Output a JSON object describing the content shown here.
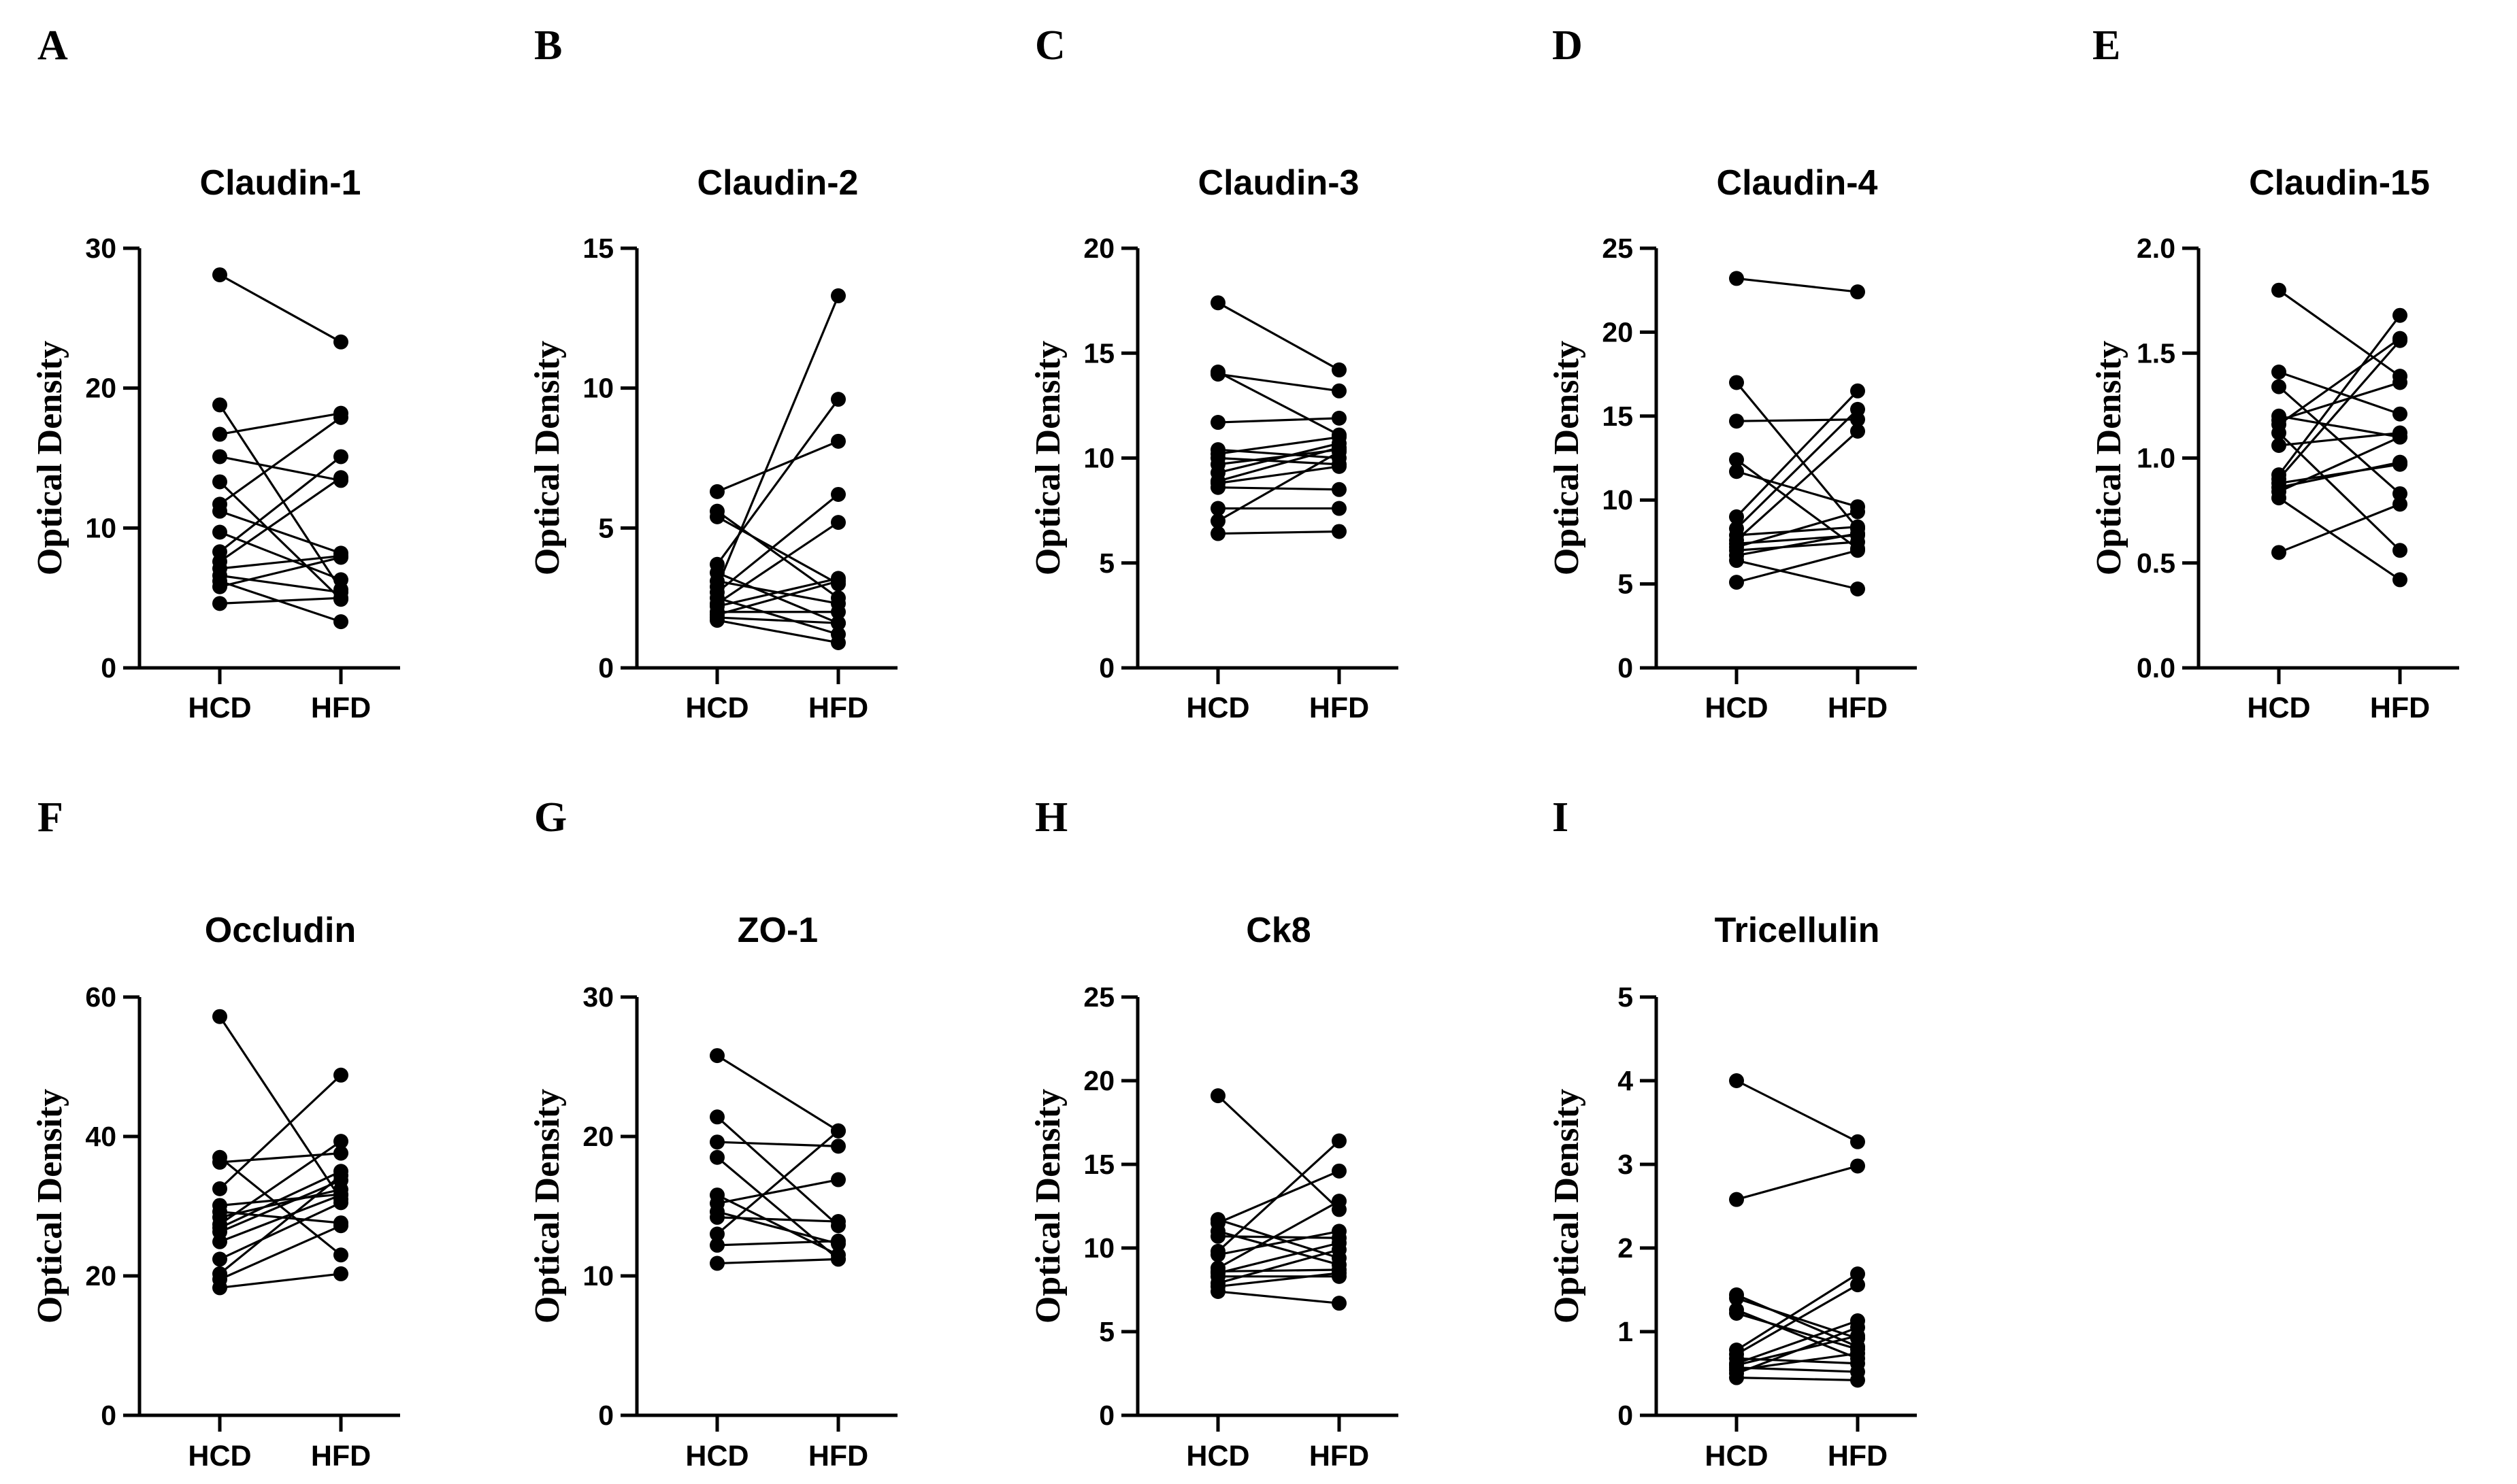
{
  "figure": {
    "background": "#ffffff",
    "ink": "#000000"
  },
  "chart_data": [
    {
      "type": "line",
      "letter": "A",
      "title": "Claudin-1",
      "ylabel": "Optical Density",
      "categories": [
        "HCD",
        "HFD"
      ],
      "ylim": [
        0,
        30
      ],
      "yticks": [
        "0",
        "10",
        "20",
        "30"
      ],
      "pairs": [
        [
          28.1,
          23.3
        ],
        [
          18.8,
          5.6
        ],
        [
          16.7,
          18.2
        ],
        [
          15.1,
          13.4
        ],
        [
          13.3,
          4.9
        ],
        [
          11.7,
          17.9
        ],
        [
          11.2,
          8.2
        ],
        [
          9.7,
          6.3
        ],
        [
          8.3,
          15.1
        ],
        [
          7.6,
          13.6
        ],
        [
          7.1,
          8.0
        ],
        [
          6.6,
          5.4
        ],
        [
          6.2,
          3.3
        ],
        [
          5.8,
          7.9
        ],
        [
          4.6,
          5.0
        ]
      ]
    },
    {
      "type": "line",
      "letter": "B",
      "title": "Claudin-2",
      "ylabel": "Optical Density",
      "categories": [
        "HCD",
        "HFD"
      ],
      "ylim": [
        0,
        15
      ],
      "yticks": [
        "0",
        "5",
        "10",
        "15"
      ],
      "pairs": [
        [
          6.3,
          8.1
        ],
        [
          5.6,
          2.5
        ],
        [
          5.4,
          3.0
        ],
        [
          3.7,
          9.6
        ],
        [
          3.4,
          1.6
        ],
        [
          3.1,
          2.3
        ],
        [
          2.9,
          13.3
        ],
        [
          2.7,
          6.2
        ],
        [
          2.5,
          1.2
        ],
        [
          2.3,
          5.2
        ],
        [
          2.2,
          3.2
        ],
        [
          2.0,
          2.0
        ],
        [
          1.9,
          3.1
        ],
        [
          1.8,
          1.6
        ],
        [
          1.7,
          0.9
        ]
      ]
    },
    {
      "type": "line",
      "letter": "C",
      "title": "Claudin-3",
      "ylabel": "Optical Density",
      "categories": [
        "HCD",
        "HFD"
      ],
      "ylim": [
        0,
        20
      ],
      "yticks": [
        "0",
        "5",
        "10",
        "15",
        "20"
      ],
      "pairs": [
        [
          17.4,
          14.2
        ],
        [
          14.1,
          11.1
        ],
        [
          14.0,
          13.2
        ],
        [
          11.7,
          11.9
        ],
        [
          10.4,
          10.0
        ],
        [
          10.2,
          11.0
        ],
        [
          10.0,
          9.7
        ],
        [
          9.7,
          10.4
        ],
        [
          9.3,
          10.7
        ],
        [
          8.9,
          10.5
        ],
        [
          8.8,
          9.6
        ],
        [
          8.6,
          8.5
        ],
        [
          7.6,
          7.6
        ],
        [
          7.0,
          10.3
        ],
        [
          6.4,
          6.5
        ]
      ]
    },
    {
      "type": "line",
      "letter": "D",
      "title": "Claudin-4",
      "ylabel": "Optical Density",
      "categories": [
        "HCD",
        "HFD"
      ],
      "ylim": [
        0,
        25
      ],
      "yticks": [
        "0",
        "5",
        "10",
        "15",
        "20",
        "25"
      ],
      "pairs": [
        [
          23.2,
          22.4
        ],
        [
          17.0,
          8.3
        ],
        [
          14.7,
          14.8
        ],
        [
          12.4,
          7.1
        ],
        [
          11.7,
          9.6
        ],
        [
          9.0,
          16.5
        ],
        [
          8.3,
          15.4
        ],
        [
          7.9,
          8.4
        ],
        [
          7.6,
          14.1
        ],
        [
          7.4,
          7.9
        ],
        [
          7.2,
          9.3
        ],
        [
          7.0,
          7.5
        ],
        [
          6.7,
          8.0
        ],
        [
          6.4,
          4.7
        ],
        [
          5.1,
          7.0
        ]
      ]
    },
    {
      "type": "line",
      "letter": "E",
      "title": "Claudin-15",
      "ylabel": "Optical Density",
      "categories": [
        "HCD",
        "HFD"
      ],
      "ylim": [
        0,
        2
      ],
      "yticks": [
        "0.0",
        "0.5",
        "1.0",
        "1.5",
        "2.0"
      ],
      "pairs": [
        [
          1.8,
          1.39
        ],
        [
          1.41,
          1.21
        ],
        [
          1.34,
          0.83
        ],
        [
          1.2,
          1.1
        ],
        [
          1.18,
          1.36
        ],
        [
          1.16,
          1.57
        ],
        [
          1.12,
          0.56
        ],
        [
          1.06,
          1.12
        ],
        [
          0.92,
          1.68
        ],
        [
          0.9,
          1.56
        ],
        [
          0.88,
          0.97
        ],
        [
          0.86,
          0.98
        ],
        [
          0.84,
          1.1
        ],
        [
          0.81,
          0.42
        ],
        [
          0.55,
          0.78
        ]
      ]
    },
    {
      "type": "line",
      "letter": "F",
      "title": "Occludin",
      "ylabel": "Optical Density",
      "categories": [
        "HCD",
        "HFD"
      ],
      "ylim": [
        0,
        60
      ],
      "yticks": [
        "0",
        "20",
        "40",
        "60"
      ],
      "pairs": [
        [
          57.2,
          31.0
        ],
        [
          37.0,
          23.0
        ],
        [
          36.3,
          37.6
        ],
        [
          32.5,
          48.8
        ],
        [
          30.1,
          31.7
        ],
        [
          29.2,
          27.6
        ],
        [
          28.4,
          32.4
        ],
        [
          27.4,
          39.3
        ],
        [
          26.9,
          35.0
        ],
        [
          26.3,
          33.7
        ],
        [
          24.9,
          31.6
        ],
        [
          22.4,
          30.5
        ],
        [
          20.3,
          34.4
        ],
        [
          19.5,
          27.2
        ],
        [
          18.3,
          20.3
        ]
      ]
    },
    {
      "type": "line",
      "letter": "G",
      "title": "ZO-1",
      "ylabel": "Optical Density",
      "categories": [
        "HCD",
        "HFD"
      ],
      "ylim": [
        0,
        30
      ],
      "yticks": [
        "0",
        "10",
        "20",
        "30"
      ],
      "pairs": [
        [
          25.8,
          20.4
        ],
        [
          21.4,
          13.6
        ],
        [
          19.6,
          19.3
        ],
        [
          18.5,
          11.2
        ],
        [
          15.8,
          11.5
        ],
        [
          15.2,
          16.9
        ],
        [
          14.6,
          12.3
        ],
        [
          14.2,
          13.9
        ],
        [
          13.0,
          20.4
        ],
        [
          12.2,
          12.5
        ],
        [
          10.9,
          11.2
        ]
      ]
    },
    {
      "type": "line",
      "letter": "H",
      "title": "Ck8",
      "ylabel": "Optical Density",
      "categories": [
        "HCD",
        "HFD"
      ],
      "ylim": [
        0,
        25
      ],
      "yticks": [
        "0",
        "5",
        "10",
        "15",
        "20",
        "25"
      ],
      "pairs": [
        [
          19.1,
          12.3
        ],
        [
          11.7,
          9.4
        ],
        [
          11.5,
          14.6
        ],
        [
          11.0,
          9.0
        ],
        [
          10.7,
          10.6
        ],
        [
          9.8,
          16.4
        ],
        [
          9.6,
          11.0
        ],
        [
          8.8,
          12.8
        ],
        [
          8.6,
          8.7
        ],
        [
          8.5,
          10.3
        ],
        [
          8.3,
          8.3
        ],
        [
          7.9,
          9.9
        ],
        [
          7.7,
          8.5
        ],
        [
          7.4,
          6.7
        ]
      ]
    },
    {
      "type": "line",
      "letter": "I",
      "title": "Tricellulin",
      "ylabel": "Optical Density",
      "categories": [
        "HCD",
        "HFD"
      ],
      "ylim": [
        0,
        5
      ],
      "yticks": [
        "0",
        "1",
        "2",
        "3",
        "4",
        "5"
      ],
      "pairs": [
        [
          4.0,
          3.27
        ],
        [
          2.58,
          2.98
        ],
        [
          1.44,
          0.82
        ],
        [
          1.4,
          0.92
        ],
        [
          1.26,
          0.68
        ],
        [
          1.22,
          0.79
        ],
        [
          0.78,
          1.69
        ],
        [
          0.73,
          1.56
        ],
        [
          0.68,
          0.62
        ],
        [
          0.62,
          1.13
        ],
        [
          0.6,
          0.95
        ],
        [
          0.57,
          0.52
        ],
        [
          0.54,
          0.74
        ],
        [
          0.5,
          1.05
        ],
        [
          0.45,
          0.42
        ]
      ]
    }
  ]
}
